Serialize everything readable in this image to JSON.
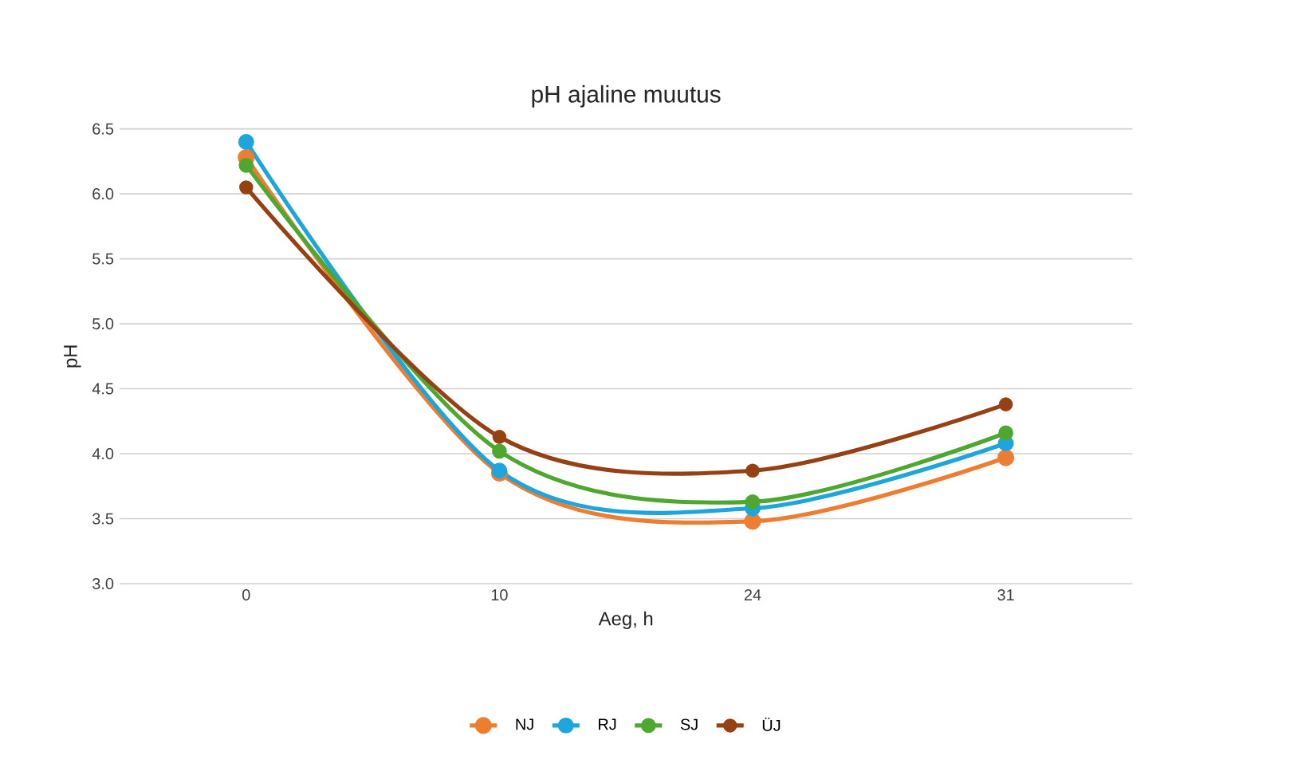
{
  "chart_data": {
    "type": "line",
    "title": "pH ajaline muutus",
    "xlabel": "Aeg, h",
    "ylabel": "pH",
    "categories": [
      "0",
      "10",
      "24",
      "31"
    ],
    "series": [
      {
        "name": "NJ",
        "color": "#ed7d31",
        "values": [
          6.28,
          3.85,
          3.48,
          3.97
        ]
      },
      {
        "name": "RJ",
        "color": "#1ea5dc",
        "values": [
          6.4,
          3.87,
          3.58,
          4.08
        ]
      },
      {
        "name": "SJ",
        "color": "#4ea72e",
        "values": [
          6.22,
          4.02,
          3.63,
          4.16
        ]
      },
      {
        "name": "ÜJ",
        "color": "#964014",
        "values": [
          6.05,
          4.13,
          3.87,
          4.38
        ]
      }
    ],
    "ylim": [
      3.0,
      6.5
    ],
    "yticks": [
      {
        "value": 3.0,
        "label": "3.0"
      },
      {
        "value": 3.5,
        "label": "3.5"
      },
      {
        "value": 4.0,
        "label": "4.0"
      },
      {
        "value": 4.5,
        "label": "4.5"
      },
      {
        "value": 5.0,
        "label": "5.0"
      },
      {
        "value": 5.5,
        "label": "5.5"
      },
      {
        "value": 6.0,
        "label": "6.0"
      },
      {
        "value": 6.5,
        "label": "6.5"
      }
    ],
    "grid": "y",
    "legend": "bottom",
    "marker": "circle",
    "line_style": "solid"
  }
}
